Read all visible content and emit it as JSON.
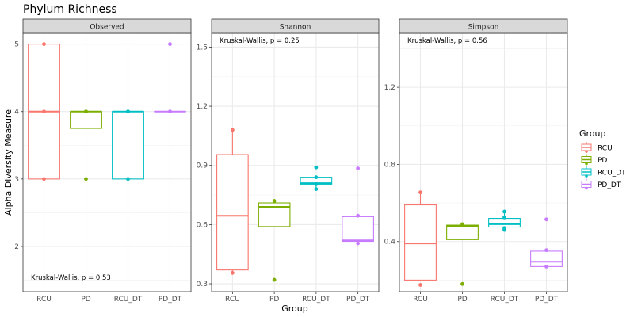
{
  "chart_data": {
    "type": "box",
    "title": "Phylum Richness",
    "xlabel": "Group",
    "ylabel": "Alpha Diversity Measure",
    "categories": [
      "RCU",
      "PD",
      "RCU_DT",
      "PD_DT"
    ],
    "colors": {
      "RCU": "#F8766D",
      "PD": "#7CAE00",
      "RCU_DT": "#00BFC4",
      "PD_DT": "#C77CFF"
    },
    "legend": {
      "title": "Group",
      "position": "right",
      "entries": [
        "RCU",
        "PD",
        "RCU_DT",
        "PD_DT"
      ]
    },
    "grid": true,
    "panels": [
      {
        "name": "Observed",
        "ylim": [
          1.33,
          5.16
        ],
        "yticks": [
          2,
          3,
          4,
          5
        ],
        "ytick_labels": [
          "2",
          "3",
          "4",
          "5"
        ],
        "annotation": "Kruskal-Wallis, p = 0.53",
        "annotation_position": "bottom-left",
        "boxes": [
          {
            "group": "RCU",
            "q1": 3,
            "median": 4,
            "q3": 5,
            "whisker_low": 3,
            "whisker_high": 5,
            "points": [
              3,
              4,
              5
            ]
          },
          {
            "group": "PD",
            "q1": 3.75,
            "median": 4,
            "q3": 4,
            "whisker_low": 3.75,
            "whisker_high": 4,
            "points": [
              3,
              4,
              4,
              4
            ]
          },
          {
            "group": "RCU_DT",
            "q1": 3,
            "median": 4,
            "q3": 4,
            "whisker_low": 3,
            "whisker_high": 4,
            "points": [
              3,
              4,
              4
            ]
          },
          {
            "group": "PD_DT",
            "q1": 4,
            "median": 4,
            "q3": 4,
            "whisker_low": 4,
            "whisker_high": 4,
            "points": [
              4,
              4,
              5
            ]
          }
        ]
      },
      {
        "name": "Shannon",
        "ylim": [
          0.26,
          1.57
        ],
        "yticks": [
          0.3,
          0.6,
          0.9,
          1.2,
          1.5
        ],
        "ytick_labels": [
          "0.3",
          "0.6",
          "0.9",
          "1.2",
          "1.5"
        ],
        "annotation": "Kruskal-Wallis, p = 0.25",
        "annotation_position": "top-left",
        "boxes": [
          {
            "group": "RCU",
            "q1": 0.37,
            "median": 0.645,
            "q3": 0.955,
            "whisker_low": 0.355,
            "whisker_high": 1.08,
            "points": [
              0.355,
              1.08
            ]
          },
          {
            "group": "PD",
            "q1": 0.59,
            "median": 0.69,
            "q3": 0.71,
            "whisker_low": 0.59,
            "whisker_high": 0.72,
            "points": [
              0.32,
              0.72
            ]
          },
          {
            "group": "RCU_DT",
            "q1": 0.805,
            "median": 0.81,
            "q3": 0.84,
            "whisker_low": 0.78,
            "whisker_high": 0.84,
            "points": [
              0.78,
              0.805,
              0.84,
              0.89
            ]
          },
          {
            "group": "PD_DT",
            "q1": 0.515,
            "median": 0.52,
            "q3": 0.64,
            "whisker_low": 0.505,
            "whisker_high": 0.645,
            "points": [
              0.505,
              0.645,
              0.885
            ]
          }
        ]
      },
      {
        "name": "Simpson",
        "ylim": [
          0.14,
          1.48
        ],
        "yticks": [
          0.4,
          0.8,
          1.2
        ],
        "ytick_labels": [
          "0.4",
          "0.8",
          "1.2"
        ],
        "annotation": "Kruskal-Wallis, p = 0.56",
        "annotation_position": "top-left",
        "boxes": [
          {
            "group": "RCU",
            "q1": 0.2,
            "median": 0.39,
            "q3": 0.59,
            "whisker_low": 0.2,
            "whisker_high": 0.655,
            "points": [
              0.175,
              0.655
            ]
          },
          {
            "group": "PD",
            "q1": 0.41,
            "median": 0.48,
            "q3": 0.485,
            "whisker_low": 0.41,
            "whisker_high": 0.49,
            "points": [
              0.18,
              0.49
            ]
          },
          {
            "group": "RCU_DT",
            "q1": 0.475,
            "median": 0.49,
            "q3": 0.52,
            "whisker_low": 0.46,
            "whisker_high": 0.555,
            "points": [
              0.46,
              0.47,
              0.525,
              0.555
            ]
          },
          {
            "group": "PD_DT",
            "q1": 0.27,
            "median": 0.295,
            "q3": 0.35,
            "whisker_low": 0.27,
            "whisker_high": 0.355,
            "points": [
              0.27,
              0.355,
              0.515
            ]
          }
        ]
      }
    ]
  }
}
